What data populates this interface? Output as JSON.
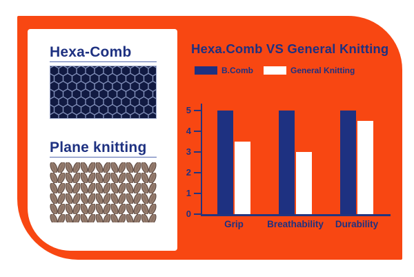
{
  "colors": {
    "background": "#FFFFFF",
    "panel_orange": "#F84712",
    "navy": "#1E3181",
    "hex_texture_bg": "#111A42",
    "hex_texture_line": "#8290BA",
    "knit_brown": "#8A7164",
    "knit_brown_dark": "#5E4A42"
  },
  "left_card": {
    "sections": [
      {
        "title": "Hexa-Comb",
        "texture": "honeycomb"
      },
      {
        "title": "Plane knitting",
        "texture": "knit"
      }
    ]
  },
  "chart_data": {
    "type": "bar",
    "title": "Hexa.Comb VS General Knitting",
    "categories": [
      "Grip",
      "Breathability",
      "Durability"
    ],
    "series": [
      {
        "name": "B.Comb",
        "color": "#1E3181",
        "values": [
          5,
          5,
          5
        ]
      },
      {
        "name": "General Knitting",
        "color": "#FFFFFF",
        "values": [
          3.5,
          3,
          4.5
        ]
      }
    ],
    "ylabel": "",
    "xlabel": "",
    "ylim": [
      0,
      5
    ],
    "yticks": [
      0,
      1,
      2,
      3,
      4,
      5
    ],
    "grid": false,
    "legend_position": "top-left"
  }
}
